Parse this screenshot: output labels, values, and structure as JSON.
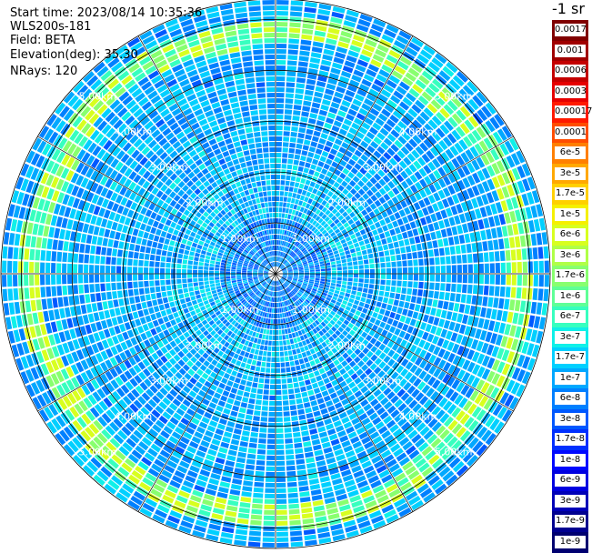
{
  "header": {
    "start_time": "Start time: 2023/08/14 10:35:36",
    "instrument": "WLS200s-181",
    "field": "Field: BETA",
    "elevation": "Elevation(deg): 35.30",
    "nrays": "NRays: 120"
  },
  "colorbar": {
    "unit": "-1 sr",
    "labels": [
      "0.0017",
      "0.001",
      "0.0006",
      "0.0003",
      "0.00017",
      "0.0001",
      "6e-5",
      "3e-5",
      "1.7e-5",
      "1e-5",
      "6e-6",
      "3e-6",
      "1.7e-6",
      "1e-6",
      "6e-7",
      "3e-7",
      "1.7e-7",
      "1e-7",
      "6e-8",
      "3e-8",
      "1.7e-8",
      "1e-8",
      "6e-9",
      "3e-9",
      "1.7e-9",
      "1e-9"
    ],
    "colors": [
      "#800000",
      "#a00000",
      "#c40000",
      "#e60000",
      "#ff1a00",
      "#ff4d00",
      "#ff7f00",
      "#ffa800",
      "#ffd000",
      "#f5f000",
      "#d8ff1f",
      "#b0ff47",
      "#88ff6f",
      "#5fff97",
      "#37ffbf",
      "#10f0e8",
      "#00d0ff",
      "#00a8ff",
      "#0080ff",
      "#0058ff",
      "#0030ff",
      "#0008ff",
      "#0000e0",
      "#0000b8",
      "#000090",
      "#000070"
    ]
  },
  "range_labels": [
    "1.00km",
    "2.00km",
    "3.00km",
    "4.00km",
    "5.00km"
  ],
  "scan": {
    "rays": 120,
    "max_range_km": 5.4,
    "ring_ranges_km": [
      1.0,
      2.0,
      3.0,
      4.0,
      5.0
    ],
    "grid_line_angles_deg": [
      0,
      30,
      60,
      90,
      120,
      150,
      180,
      210,
      240,
      270,
      300,
      330
    ],
    "aerosol_band_range_km": [
      4.6,
      5.0
    ]
  }
}
